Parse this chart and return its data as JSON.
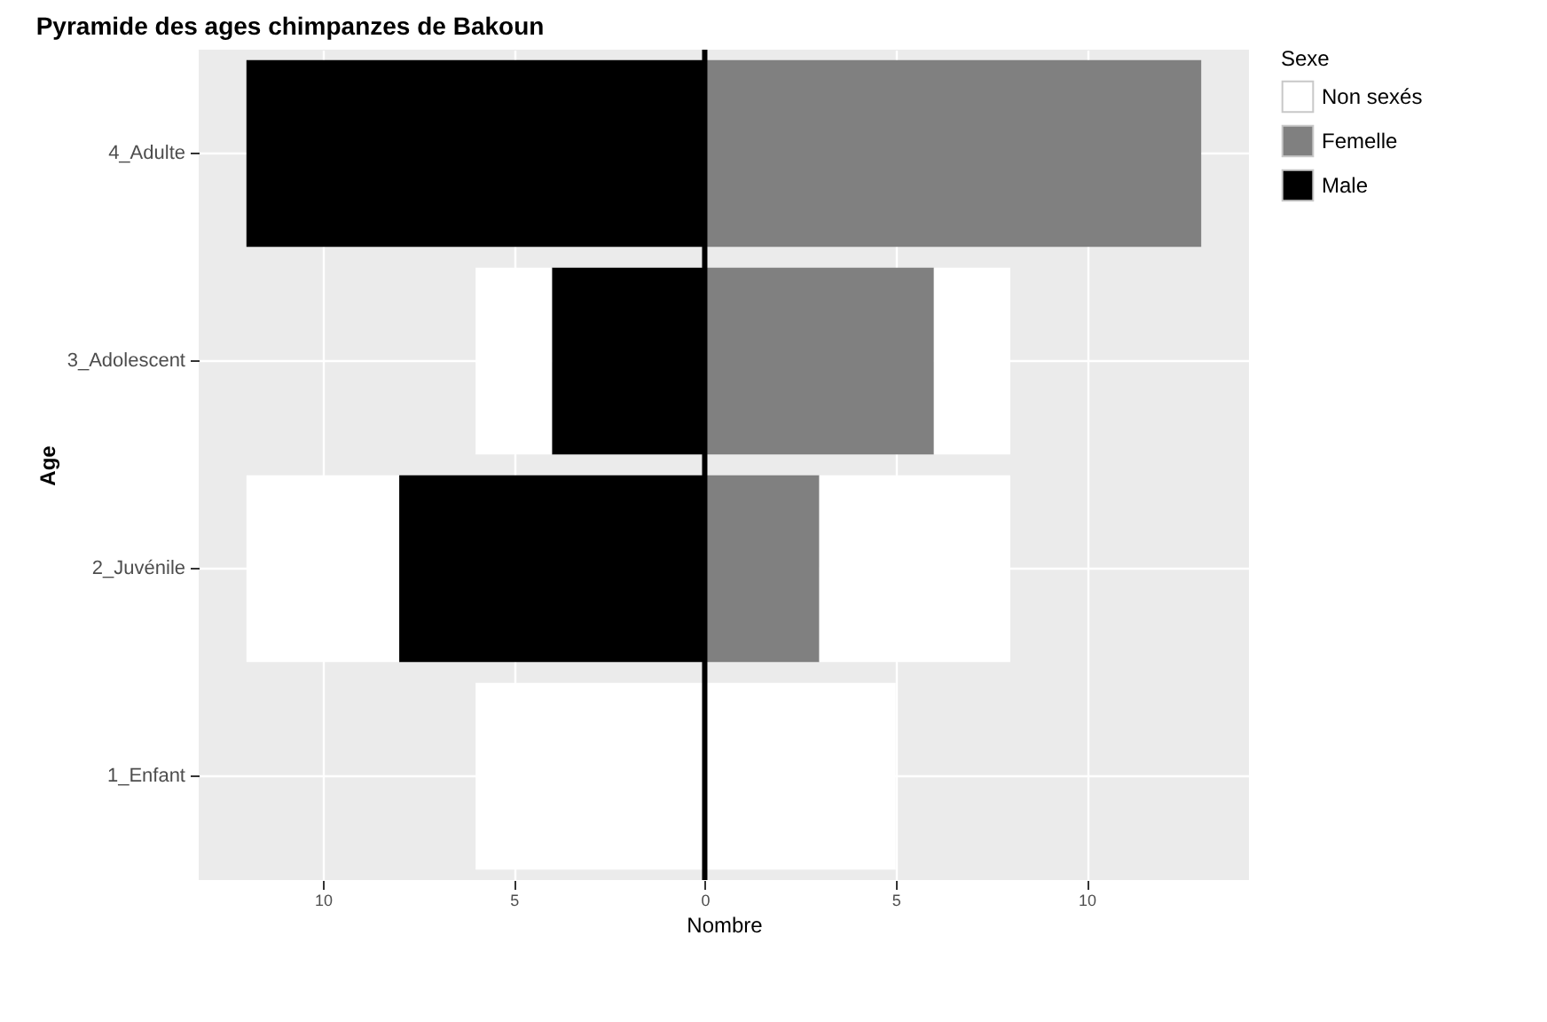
{
  "chart_data": {
    "type": "bar",
    "orientation": "horizontal",
    "stacked": true,
    "title": "Pyramide des ages chimpanzes de Bakoun",
    "xlabel": "Nombre",
    "ylabel": "Age",
    "legend_title": "Sexe",
    "legend": "right",
    "categories": [
      "4_Adulte",
      "3_Adolescent",
      "2_Juvénile",
      "1_Enfant"
    ],
    "series": [
      {
        "name": "Male",
        "color": "#000000",
        "values": [
          -12,
          -4,
          -8,
          0
        ]
      },
      {
        "name": "Femelle",
        "color": "#808080",
        "values": [
          13,
          6,
          3,
          0
        ]
      },
      {
        "name": "Non sexés",
        "color": "#ffffff",
        "values": [
          0,
          -2,
          -4,
          -6
        ]
      },
      {
        "color": "#ffffff",
        "values": [
          0,
          2,
          5,
          5
        ]
      }
    ],
    "xlim": [
      -13.25,
      14.25
    ],
    "xticks": [
      {
        "value": -10,
        "label": "10"
      },
      {
        "value": -5,
        "label": "5"
      },
      0,
      5,
      10
    ],
    "ref_lines": [
      {
        "axis": "x",
        "value": 0,
        "color": "#000000"
      }
    ],
    "grid": true
  }
}
